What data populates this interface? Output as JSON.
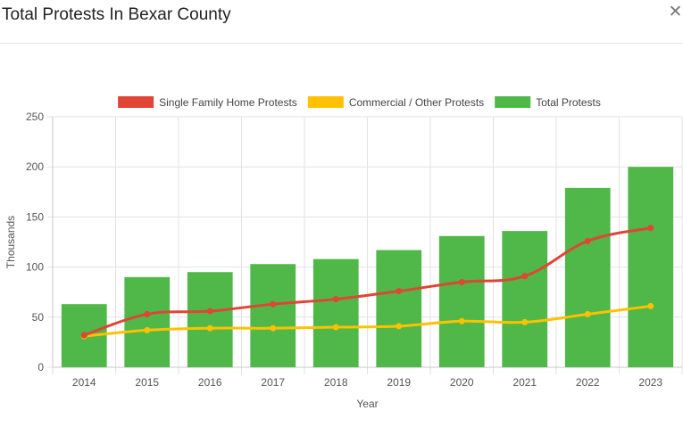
{
  "window": {
    "title": "Total Protests In Bexar County",
    "close_symbol": "✕",
    "close_icon": "close-icon"
  },
  "chart_data": {
    "type": "bar",
    "categories": [
      "2014",
      "2015",
      "2016",
      "2017",
      "2018",
      "2019",
      "2020",
      "2021",
      "2022",
      "2023"
    ],
    "series": [
      {
        "name": "Single Family Home Protests",
        "type": "line",
        "color": "#e04535",
        "values": [
          32,
          53,
          56,
          63,
          68,
          76,
          85,
          91,
          126,
          139
        ]
      },
      {
        "name": "Commercial / Other Protests",
        "type": "line",
        "color": "#ffc100",
        "values": [
          31,
          37,
          39,
          39,
          40,
          41,
          46,
          45,
          53,
          61
        ]
      },
      {
        "name": "Total Protests",
        "type": "bar",
        "color": "#4fb848",
        "values": [
          63,
          90,
          95,
          103,
          108,
          117,
          131,
          136,
          179,
          200
        ]
      }
    ],
    "xlabel": "Year",
    "ylabel": "Thousands",
    "ylim": [
      0,
      250
    ],
    "yticks": [
      0,
      50,
      100,
      150,
      200,
      250
    ],
    "grid": true,
    "legend_position": "top"
  }
}
